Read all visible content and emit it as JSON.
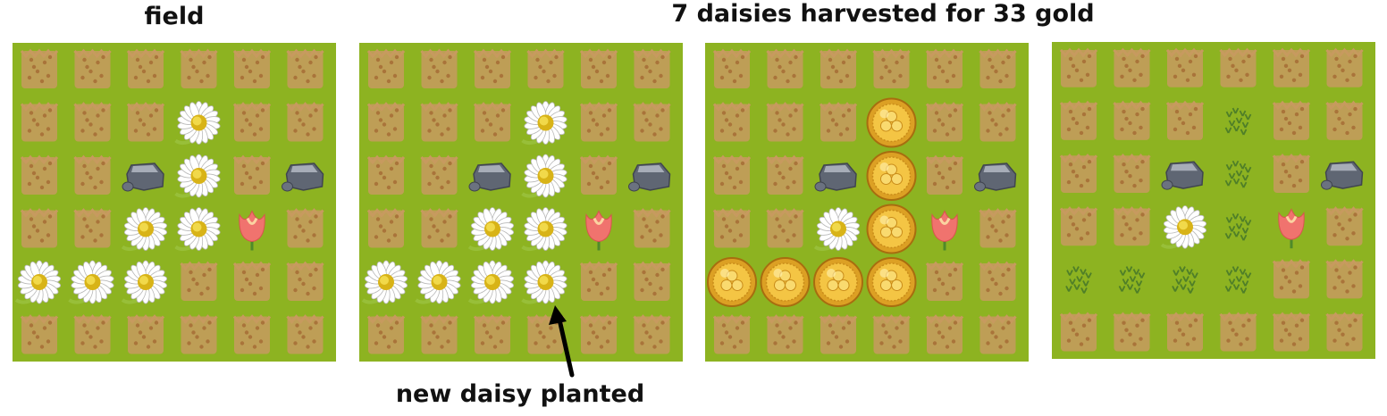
{
  "captions": {
    "field": "field",
    "harvest": "7 daisies harvested for 33 gold",
    "planted": "new daisy planted"
  },
  "colors": {
    "grass": "#8db321",
    "soil": "#c79a5f",
    "soil_dark": "#a9743a",
    "sprout": "#4f7f28"
  },
  "grid": {
    "rows": 6,
    "cols": 6
  },
  "legend": {
    ".": "soil",
    "D": "daisy",
    "R": "rock",
    "T": "tulip",
    "G": "gold-coin",
    "S": "sprout",
    "N": "new-daisy"
  },
  "boards": [
    {
      "name": "board-field",
      "cells": [
        "......",
        "...D..",
        "..RD.R",
        "..DDT.",
        "DDD...",
        "......"
      ]
    },
    {
      "name": "board-planted",
      "cells": [
        "......",
        "...D..",
        "..RD.R",
        "..DDT.",
        "DDDN..",
        "......"
      ]
    },
    {
      "name": "board-harvest",
      "cells": [
        "......",
        "...G..",
        "..RG.R",
        "..DGT.",
        "GGGG..",
        "......"
      ]
    },
    {
      "name": "board-after",
      "cells": [
        "......",
        "...S..",
        "..RS.R",
        "..DST.",
        "SSSS..",
        "......"
      ]
    }
  ]
}
